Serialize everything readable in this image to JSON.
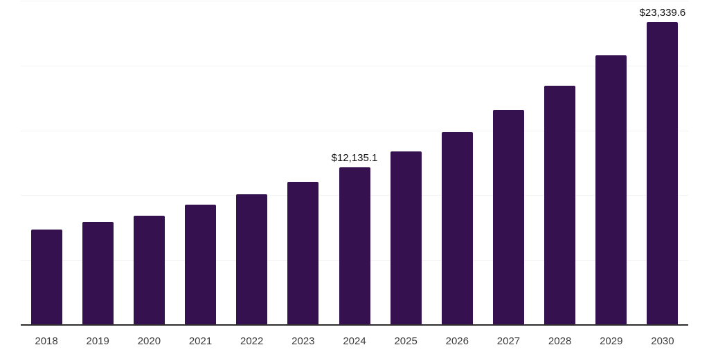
{
  "chart_data": {
    "type": "bar",
    "title": "",
    "xlabel": "",
    "ylabel": "",
    "categories": [
      "2018",
      "2019",
      "2020",
      "2021",
      "2022",
      "2023",
      "2024",
      "2025",
      "2026",
      "2027",
      "2028",
      "2029",
      "2030"
    ],
    "values": [
      7380,
      7960,
      8440,
      9250,
      10070,
      11060,
      12135.1,
      13380,
      14850,
      16580,
      18450,
      20780,
      23339.6
    ],
    "value_labels": [
      "",
      "",
      "",
      "",
      "",
      "",
      "$12,135.1",
      "",
      "",
      "",
      "",
      "",
      "$23,339.6"
    ],
    "ylim": [
      0,
      25000
    ],
    "gridline_values": [
      5000,
      10000,
      15000,
      20000,
      25000
    ],
    "grid": "horizontal",
    "legend": "none",
    "colors": {
      "bar": "#351150",
      "value_label": "#111111",
      "tick_label": "#3d3d3d",
      "axis_line": "#2e2e2e",
      "gridline": "#f3f3f3",
      "background": "#ffffff"
    }
  }
}
